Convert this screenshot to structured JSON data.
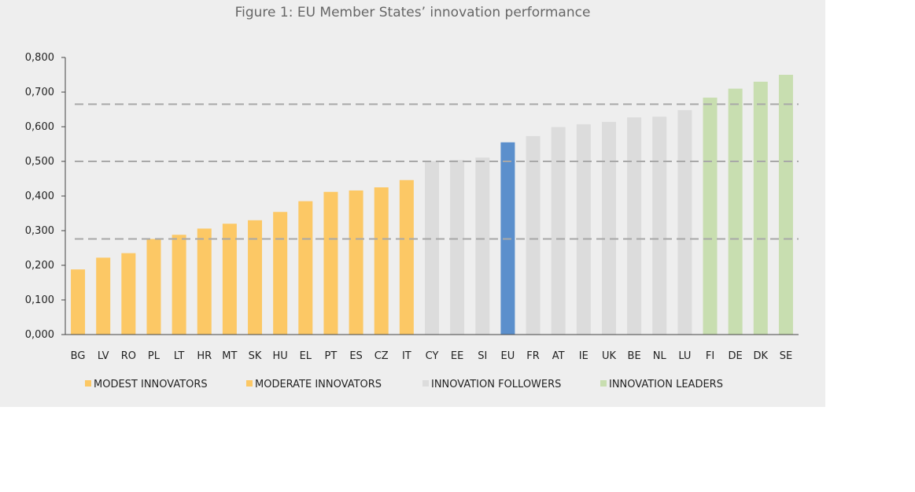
{
  "chart_data": {
    "type": "bar",
    "title": "Figure 1: EU Member States’ innovation performance",
    "xlabel": "",
    "ylabel": "",
    "ylim": [
      0,
      0.8
    ],
    "ytick_values": [
      0,
      0.1,
      0.2,
      0.3,
      0.4,
      0.5,
      0.6,
      0.7,
      0.8
    ],
    "ytick_labels": [
      "0,000",
      "0,100",
      "0,200",
      "0,300",
      "0,400",
      "0,500",
      "0,600",
      "0,700",
      "0,800"
    ],
    "categories": [
      "BG",
      "LV",
      "RO",
      "PL",
      "LT",
      "HR",
      "MT",
      "SK",
      "HU",
      "EL",
      "PT",
      "ES",
      "CZ",
      "IT",
      "CY",
      "EE",
      "SI",
      "EU",
      "FR",
      "AT",
      "IE",
      "UK",
      "BE",
      "NL",
      "LU",
      "FI",
      "DE",
      "DK",
      "SE"
    ],
    "values": [
      0.188,
      0.222,
      0.235,
      0.276,
      0.288,
      0.306,
      0.32,
      0.33,
      0.354,
      0.385,
      0.412,
      0.416,
      0.425,
      0.446,
      0.501,
      0.504,
      0.511,
      0.555,
      0.573,
      0.599,
      0.607,
      0.614,
      0.627,
      0.629,
      0.648,
      0.684,
      0.71,
      0.73,
      0.75
    ],
    "groups": [
      "modest",
      "modest",
      "modest",
      "moderate",
      "moderate",
      "moderate",
      "moderate",
      "moderate",
      "moderate",
      "moderate",
      "moderate",
      "moderate",
      "moderate",
      "moderate",
      "followers",
      "followers",
      "followers",
      "eu",
      "followers",
      "followers",
      "followers",
      "followers",
      "followers",
      "followers",
      "followers",
      "leaders",
      "leaders",
      "leaders",
      "leaders"
    ],
    "reference_lines": [
      0.276,
      0.5,
      0.665
    ],
    "legend": [
      {
        "key": "modest",
        "label": "MODEST INNOVATORS"
      },
      {
        "key": "moderate",
        "label": "MODERATE INNOVATORS"
      },
      {
        "key": "followers",
        "label": "INNOVATION FOLLOWERS"
      },
      {
        "key": "leaders",
        "label": "INNOVATION LEADERS"
      }
    ],
    "legend_position": "bottom",
    "grid": false,
    "colors": {
      "modest": "#fcc865",
      "moderate": "#fcc865",
      "followers": "#dcdcdc",
      "eu": "#5b8fcc",
      "leaders": "#c8deb0",
      "reference_line": "#a8a8a8"
    }
  }
}
